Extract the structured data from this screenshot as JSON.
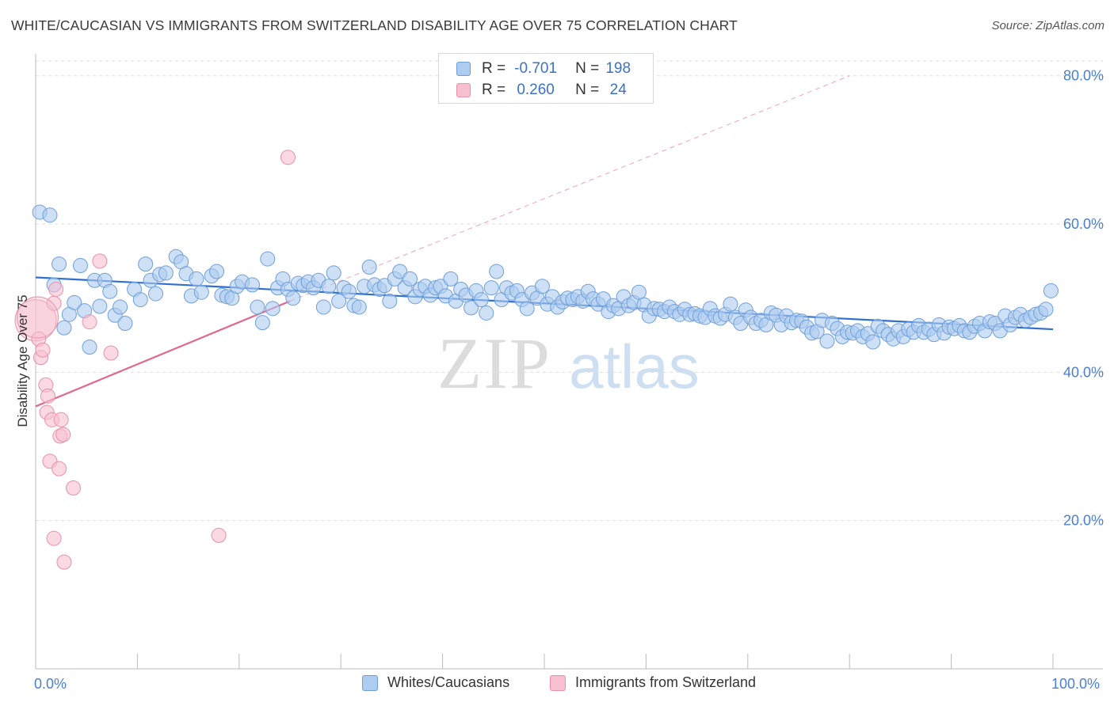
{
  "title": "WHITE/CAUCASIAN VS IMMIGRANTS FROM SWITZERLAND DISABILITY AGE OVER 75 CORRELATION CHART",
  "source": "Source: ZipAtlas.com",
  "watermark": {
    "zip": "ZIP",
    "atlas": "atlas"
  },
  "legend": {
    "rows": [
      {
        "r_label": "R =",
        "r_value": "-0.701",
        "n_label": "N =",
        "n_value": "198"
      },
      {
        "r_label": "R =",
        "r_value": "0.260",
        "n_label": "N =",
        "n_value": "24"
      }
    ]
  },
  "bottom_legend": {
    "series1": "Whites/Caucasians",
    "series2": "Immigrants from Switzerland"
  },
  "colors": {
    "blue_fill": "#aecbf0",
    "blue_stroke": "#6f9fd8",
    "blue_line": "#2f6fcf",
    "pink_fill": "#f7c0d0",
    "pink_stroke": "#e890ac",
    "pink_line": "#e0688f",
    "grid": "#dddddd",
    "tick_text": "#4a7fd0"
  },
  "chart_data": {
    "type": "scatter",
    "title": "WHITE/CAUCASIAN VS IMMIGRANTS FROM SWITZERLAND DISABILITY AGE OVER 75 CORRELATION CHART",
    "xlabel": "",
    "ylabel": "Disability Age Over 75",
    "xlim": [
      0,
      100
    ],
    "ylim": [
      0,
      82
    ],
    "x_tick_labels": [
      "0.0%",
      "100.0%"
    ],
    "y_ticks": [
      20,
      40,
      60,
      80
    ],
    "y_tick_labels": [
      "20.0%",
      "40.0%",
      "60.0%",
      "80.0%"
    ],
    "grid": true,
    "series": [
      {
        "name": "Whites/Caucasians",
        "R": -0.701,
        "N": 198,
        "trend": {
          "x": [
            0,
            100
          ],
          "y": [
            52.8,
            45.8
          ]
        },
        "points": [
          [
            0.4,
            61.6
          ],
          [
            1.4,
            61.2
          ],
          [
            1.8,
            51.8
          ],
          [
            2.3,
            54.6
          ],
          [
            2.8,
            46.0
          ],
          [
            3.3,
            47.8
          ],
          [
            3.8,
            49.4
          ],
          [
            4.4,
            54.4
          ],
          [
            4.8,
            48.3
          ],
          [
            5.3,
            43.4
          ],
          [
            5.8,
            52.4
          ],
          [
            6.3,
            48.9
          ],
          [
            6.8,
            52.4
          ],
          [
            7.3,
            50.9
          ],
          [
            7.8,
            47.7
          ],
          [
            8.3,
            48.8
          ],
          [
            8.8,
            46.6
          ],
          [
            9.7,
            51.2
          ],
          [
            10.3,
            49.8
          ],
          [
            10.8,
            54.6
          ],
          [
            11.3,
            52.4
          ],
          [
            11.8,
            50.6
          ],
          [
            12.2,
            53.2
          ],
          [
            12.8,
            53.4
          ],
          [
            13.8,
            55.6
          ],
          [
            14.3,
            54.9
          ],
          [
            14.8,
            53.3
          ],
          [
            15.3,
            50.3
          ],
          [
            15.8,
            52.6
          ],
          [
            16.3,
            50.8
          ],
          [
            17.3,
            53.0
          ],
          [
            17.8,
            53.6
          ],
          [
            18.3,
            50.4
          ],
          [
            18.8,
            50.2
          ],
          [
            19.3,
            50.0
          ],
          [
            19.8,
            51.6
          ],
          [
            20.3,
            52.2
          ],
          [
            21.3,
            51.8
          ],
          [
            21.8,
            48.8
          ],
          [
            22.3,
            46.7
          ],
          [
            22.8,
            55.3
          ],
          [
            23.3,
            48.6
          ],
          [
            23.8,
            51.4
          ],
          [
            24.3,
            52.6
          ],
          [
            24.8,
            51.2
          ],
          [
            25.3,
            50.0
          ],
          [
            25.8,
            52.0
          ],
          [
            26.3,
            51.7
          ],
          [
            26.8,
            52.2
          ],
          [
            27.3,
            51.4
          ],
          [
            27.8,
            52.4
          ],
          [
            28.3,
            48.8
          ],
          [
            28.8,
            51.6
          ],
          [
            29.3,
            53.4
          ],
          [
            29.8,
            49.6
          ],
          [
            30.3,
            51.4
          ],
          [
            30.8,
            50.9
          ],
          [
            31.3,
            49.0
          ],
          [
            31.8,
            48.8
          ],
          [
            32.3,
            51.6
          ],
          [
            32.8,
            54.2
          ],
          [
            33.3,
            51.8
          ],
          [
            33.8,
            51.2
          ],
          [
            34.3,
            51.7
          ],
          [
            34.8,
            49.6
          ],
          [
            35.3,
            52.6
          ],
          [
            35.8,
            53.6
          ],
          [
            36.3,
            51.4
          ],
          [
            36.8,
            52.6
          ],
          [
            37.3,
            50.2
          ],
          [
            37.8,
            51.2
          ],
          [
            38.3,
            51.6
          ],
          [
            38.8,
            50.4
          ],
          [
            39.3,
            51.4
          ],
          [
            39.8,
            51.6
          ],
          [
            40.3,
            50.3
          ],
          [
            40.8,
            52.6
          ],
          [
            41.3,
            49.6
          ],
          [
            41.8,
            51.2
          ],
          [
            42.3,
            50.4
          ],
          [
            42.8,
            48.7
          ],
          [
            43.3,
            51.0
          ],
          [
            43.8,
            49.8
          ],
          [
            44.3,
            48.0
          ],
          [
            44.8,
            51.4
          ],
          [
            45.3,
            53.6
          ],
          [
            45.8,
            49.8
          ],
          [
            46.3,
            51.4
          ],
          [
            46.8,
            50.7
          ],
          [
            47.3,
            51.0
          ],
          [
            47.8,
            49.8
          ],
          [
            48.3,
            48.6
          ],
          [
            48.8,
            50.7
          ],
          [
            49.3,
            50.0
          ],
          [
            49.8,
            51.6
          ],
          [
            50.3,
            49.2
          ],
          [
            50.8,
            50.2
          ],
          [
            51.3,
            48.8
          ],
          [
            51.8,
            49.5
          ],
          [
            52.3,
            50.0
          ],
          [
            52.8,
            49.8
          ],
          [
            53.3,
            50.2
          ],
          [
            53.8,
            49.6
          ],
          [
            54.3,
            50.9
          ],
          [
            54.8,
            49.9
          ],
          [
            55.3,
            49.2
          ],
          [
            55.8,
            49.9
          ],
          [
            56.3,
            48.2
          ],
          [
            56.8,
            49.0
          ],
          [
            57.3,
            48.6
          ],
          [
            57.8,
            50.2
          ],
          [
            58.3,
            49.0
          ],
          [
            58.8,
            49.4
          ],
          [
            59.3,
            50.8
          ],
          [
            59.8,
            49.1
          ],
          [
            60.3,
            47.6
          ],
          [
            60.8,
            48.6
          ],
          [
            61.3,
            48.5
          ],
          [
            61.8,
            48.2
          ],
          [
            62.3,
            48.8
          ],
          [
            62.8,
            48.2
          ],
          [
            63.3,
            47.8
          ],
          [
            63.8,
            48.5
          ],
          [
            64.3,
            47.8
          ],
          [
            64.8,
            47.9
          ],
          [
            65.3,
            47.6
          ],
          [
            65.8,
            47.4
          ],
          [
            66.3,
            48.6
          ],
          [
            66.8,
            47.6
          ],
          [
            67.3,
            47.3
          ],
          [
            67.8,
            47.8
          ],
          [
            68.3,
            49.2
          ],
          [
            68.8,
            47.4
          ],
          [
            69.3,
            46.6
          ],
          [
            69.8,
            48.4
          ],
          [
            70.3,
            47.4
          ],
          [
            70.8,
            46.6
          ],
          [
            71.3,
            47.0
          ],
          [
            71.8,
            46.4
          ],
          [
            72.3,
            48.0
          ],
          [
            72.8,
            47.7
          ],
          [
            73.3,
            46.4
          ],
          [
            73.8,
            47.6
          ],
          [
            74.3,
            46.7
          ],
          [
            74.8,
            47.0
          ],
          [
            75.3,
            46.9
          ],
          [
            75.8,
            46.1
          ],
          [
            76.3,
            45.3
          ],
          [
            76.8,
            45.5
          ],
          [
            77.3,
            47.0
          ],
          [
            77.8,
            44.2
          ],
          [
            78.3,
            46.6
          ],
          [
            78.8,
            45.9
          ],
          [
            79.3,
            44.8
          ],
          [
            79.8,
            45.4
          ],
          [
            80.3,
            45.3
          ],
          [
            80.8,
            45.6
          ],
          [
            81.3,
            44.8
          ],
          [
            81.8,
            45.2
          ],
          [
            82.3,
            44.1
          ],
          [
            82.8,
            46.2
          ],
          [
            83.3,
            45.6
          ],
          [
            83.8,
            45.1
          ],
          [
            84.3,
            44.5
          ],
          [
            84.8,
            45.6
          ],
          [
            85.3,
            44.8
          ],
          [
            85.8,
            45.8
          ],
          [
            86.3,
            45.4
          ],
          [
            86.8,
            46.3
          ],
          [
            87.3,
            45.4
          ],
          [
            87.8,
            45.8
          ],
          [
            88.3,
            45.1
          ],
          [
            88.8,
            46.4
          ],
          [
            89.3,
            45.3
          ],
          [
            89.8,
            46.1
          ],
          [
            90.3,
            45.9
          ],
          [
            90.8,
            46.3
          ],
          [
            91.3,
            45.6
          ],
          [
            91.8,
            45.4
          ],
          [
            92.3,
            46.2
          ],
          [
            92.8,
            46.6
          ],
          [
            93.3,
            45.6
          ],
          [
            93.8,
            46.8
          ],
          [
            94.3,
            46.6
          ],
          [
            94.8,
            45.6
          ],
          [
            95.3,
            47.6
          ],
          [
            95.8,
            46.4
          ],
          [
            96.3,
            47.4
          ],
          [
            96.8,
            47.8
          ],
          [
            97.3,
            47.0
          ],
          [
            97.8,
            47.4
          ],
          [
            98.3,
            47.8
          ],
          [
            98.8,
            48.0
          ],
          [
            99.3,
            48.5
          ],
          [
            99.8,
            51.0
          ]
        ]
      },
      {
        "name": "Immigrants from Switzerland",
        "R": 0.26,
        "N": 24,
        "trend": {
          "x": [
            0,
            25
          ],
          "y": [
            35.4,
            49.6
          ]
        },
        "extension": {
          "x": [
            25,
            80
          ],
          "y": [
            49.6,
            80
          ]
        },
        "points": [
          [
            0.0,
            47.0
          ],
          [
            0.3,
            44.5
          ],
          [
            0.5,
            42.0
          ],
          [
            0.7,
            43.0
          ],
          [
            1.0,
            38.3
          ],
          [
            1.1,
            34.6
          ],
          [
            1.2,
            36.8
          ],
          [
            1.4,
            28.0
          ],
          [
            1.6,
            33.6
          ],
          [
            1.8,
            49.3
          ],
          [
            1.8,
            17.6
          ],
          [
            2.0,
            51.2
          ],
          [
            2.3,
            27.0
          ],
          [
            2.4,
            31.4
          ],
          [
            2.5,
            33.6
          ],
          [
            2.7,
            31.6
          ],
          [
            2.8,
            14.4
          ],
          [
            3.7,
            24.4
          ],
          [
            5.3,
            46.8
          ],
          [
            6.3,
            55.0
          ],
          [
            7.4,
            42.6
          ],
          [
            18.0,
            18.0
          ],
          [
            24.8,
            69.0
          ],
          [
            0.2,
            47.4
          ]
        ],
        "sizes": [
          26,
          9,
          9,
          9,
          9,
          9,
          9,
          9,
          9,
          9,
          9,
          9,
          9,
          9,
          9,
          9,
          9,
          9,
          9,
          9,
          9,
          9,
          9,
          26
        ]
      }
    ]
  }
}
